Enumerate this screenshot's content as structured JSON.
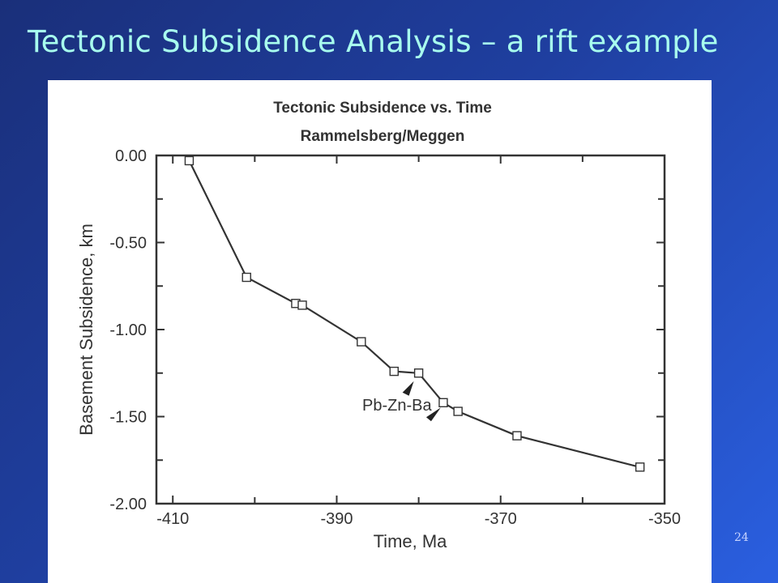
{
  "slide": {
    "title": "Tectonic Subsidence Analysis – a rift example",
    "page_number": "24"
  },
  "chart_data": {
    "type": "line",
    "title": "Tectonic Subsidence vs. Time",
    "subtitle": "Rammelsberg/Meggen",
    "xlabel": "Time, Ma",
    "ylabel": "Basement Subsidence, km",
    "xlim": [
      -412,
      -350
    ],
    "ylim": [
      -2.0,
      0.0
    ],
    "x_ticks": [
      -410,
      -390,
      -370,
      -350
    ],
    "x_tick_labels": [
      "-410",
      "-390",
      "-370",
      "-350"
    ],
    "y_ticks": [
      0.0,
      -0.5,
      -1.0,
      -1.5,
      -2.0
    ],
    "y_tick_labels": [
      "0.00",
      "-0.50",
      "-1.00",
      "-1.50",
      "-2.00"
    ],
    "grid": false,
    "series": [
      {
        "marker": "open-square",
        "color": "#333333",
        "x": [
          -408,
          -401,
          -395,
          -394.2,
          -387,
          -383,
          -380,
          -377,
          -375.2,
          -368,
          -353
        ],
        "y": [
          -0.03,
          -0.7,
          -0.85,
          -0.86,
          -1.07,
          -1.24,
          -1.25,
          -1.42,
          -1.47,
          -1.61,
          -1.79
        ]
      }
    ],
    "annotations": [
      {
        "text": "Pb-Zn-Ba",
        "arrows_to_x": [
          -380,
          -377
        ]
      }
    ]
  }
}
